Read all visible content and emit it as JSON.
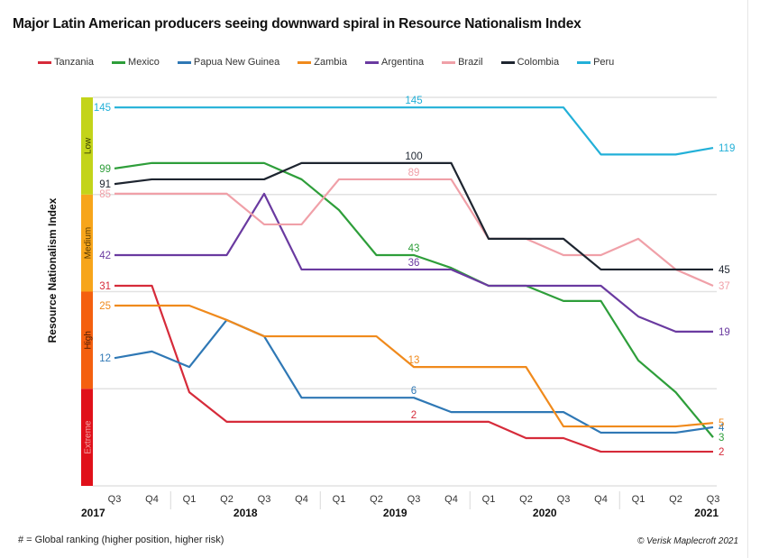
{
  "chart_data": {
    "type": "line",
    "title": "Major Latin American producers seeing downward spiral in Resource Nationalism Index",
    "ylabel": "Resource Nationalism Index",
    "xlabel": "",
    "x": [
      "Q3 2017",
      "Q4 2017",
      "Q1 2018",
      "Q2 2018",
      "Q3 2018",
      "Q4 2018",
      "Q1 2019",
      "Q2 2019",
      "Q3 2019",
      "Q4 2019",
      "Q1 2020",
      "Q2 2020",
      "Q3 2020",
      "Q4 2020",
      "Q1 2021",
      "Q2 2021",
      "Q3 2021"
    ],
    "quarter_ticks": [
      "Q3",
      "Q4",
      "Q1",
      "Q2",
      "Q3",
      "Q4",
      "Q1",
      "Q2",
      "Q3",
      "Q4",
      "Q1",
      "Q2",
      "Q3",
      "Q4",
      "Q1",
      "Q2",
      "Q3"
    ],
    "year_labels": [
      {
        "label": "2017",
        "at_index": 0,
        "align": "left"
      },
      {
        "label": "2018",
        "at_index": 3.5,
        "align": "center"
      },
      {
        "label": "2019",
        "at_index": 7.5,
        "align": "center"
      },
      {
        "label": "2020",
        "at_index": 11.5,
        "align": "center"
      },
      {
        "label": "2021",
        "at_index": 16,
        "align": "right"
      }
    ],
    "year_separators_after_index": [
      1,
      5,
      9,
      13
    ],
    "y_scale_note": "Vertical position is a risk-band position scale from 0 (bottom, Extreme) to 1 (top, Low); values below are that position",
    "ylim": [
      0,
      1
    ],
    "bands": [
      {
        "name": "Extreme",
        "from": 0,
        "to": 0.25,
        "color": "#e0101a",
        "text_color": "#f4a0a0"
      },
      {
        "name": "High",
        "from": 0.25,
        "to": 0.5,
        "color": "#f4600f",
        "text_color": "#4a1a00"
      },
      {
        "name": "Medium",
        "from": 0.5,
        "to": 0.75,
        "color": "#f7a51b",
        "text_color": "#5a3a00"
      },
      {
        "name": "Low",
        "from": 0.75,
        "to": 1,
        "color": "#c3d41a",
        "text_color": "#3a4000"
      }
    ],
    "grid": true,
    "legend_position": "top",
    "series": [
      {
        "name": "Tanzania",
        "color": "#d62b3a",
        "positions": [
          0.515,
          0.515,
          0.241,
          0.165,
          0.165,
          0.165,
          0.165,
          0.165,
          0.165,
          0.165,
          0.165,
          0.123,
          0.123,
          0.088,
          0.088,
          0.088,
          0.088
        ],
        "labels": [
          {
            "index": 0,
            "text": "31",
            "side": "start"
          },
          {
            "index": 8,
            "text": "2",
            "side": "above"
          },
          {
            "index": 16,
            "text": "2",
            "side": "end"
          }
        ]
      },
      {
        "name": "Mexico",
        "color": "#2e9e3a",
        "positions": [
          0.817,
          0.831,
          0.831,
          0.831,
          0.831,
          0.789,
          0.71,
          0.594,
          0.594,
          0.561,
          0.515,
          0.515,
          0.476,
          0.476,
          0.323,
          0.241,
          0.125
        ],
        "labels": [
          {
            "index": 0,
            "text": "99",
            "side": "start"
          },
          {
            "index": 8,
            "text": "43",
            "side": "above"
          },
          {
            "index": 16,
            "text": "3",
            "side": "end"
          }
        ]
      },
      {
        "name": "Papua New Guinea",
        "color": "#2f78b5",
        "positions": [
          0.329,
          0.346,
          0.306,
          0.427,
          0.385,
          0.227,
          0.227,
          0.227,
          0.227,
          0.19,
          0.19,
          0.19,
          0.19,
          0.137,
          0.137,
          0.137,
          0.151
        ],
        "labels": [
          {
            "index": 0,
            "text": "12",
            "side": "start"
          },
          {
            "index": 8,
            "text": "6",
            "side": "above"
          },
          {
            "index": 16,
            "text": "4",
            "side": "end"
          }
        ]
      },
      {
        "name": "Zambia",
        "color": "#f08a1c",
        "positions": [
          0.464,
          0.464,
          0.464,
          0.427,
          0.385,
          0.385,
          0.385,
          0.385,
          0.306,
          0.306,
          0.306,
          0.306,
          0.153,
          0.153,
          0.153,
          0.153,
          0.162
        ],
        "labels": [
          {
            "index": 0,
            "text": "25",
            "side": "start"
          },
          {
            "index": 8,
            "text": "13",
            "side": "above"
          },
          {
            "index": 16,
            "text": "5",
            "side": "end"
          }
        ]
      },
      {
        "name": "Argentina",
        "color": "#6a3aa0",
        "positions": [
          0.594,
          0.594,
          0.594,
          0.594,
          0.752,
          0.557,
          0.557,
          0.557,
          0.557,
          0.557,
          0.515,
          0.515,
          0.515,
          0.515,
          0.436,
          0.397,
          0.397
        ],
        "labels": [
          {
            "index": 0,
            "text": "42",
            "side": "start"
          },
          {
            "index": 8,
            "text": "36",
            "side": "above"
          },
          {
            "index": 16,
            "text": "19",
            "side": "end"
          }
        ]
      },
      {
        "name": "Brazil",
        "color": "#f0a0a8",
        "positions": [
          0.752,
          0.752,
          0.752,
          0.752,
          0.673,
          0.673,
          0.789,
          0.789,
          0.789,
          0.789,
          0.636,
          0.636,
          0.594,
          0.594,
          0.636,
          0.557,
          0.515
        ],
        "labels": [
          {
            "index": 0,
            "text": "85",
            "side": "start"
          },
          {
            "index": 8,
            "text": "89",
            "side": "above"
          },
          {
            "index": 16,
            "text": "37",
            "side": "end"
          }
        ]
      },
      {
        "name": "Colombia",
        "color": "#1e2530",
        "positions": [
          0.777,
          0.789,
          0.789,
          0.789,
          0.789,
          0.831,
          0.831,
          0.831,
          0.831,
          0.831,
          0.636,
          0.636,
          0.636,
          0.557,
          0.557,
          0.557,
          0.557
        ],
        "labels": [
          {
            "index": 0,
            "text": "91",
            "side": "start"
          },
          {
            "index": 8,
            "text": "100",
            "side": "above"
          },
          {
            "index": 16,
            "text": "45",
            "side": "end"
          }
        ]
      },
      {
        "name": "Peru",
        "color": "#22b0d8",
        "positions": [
          0.974,
          0.974,
          0.974,
          0.974,
          0.974,
          0.974,
          0.974,
          0.974,
          0.974,
          0.974,
          0.974,
          0.974,
          0.974,
          0.853,
          0.853,
          0.853,
          0.87
        ],
        "labels": [
          {
            "index": 0,
            "text": "145",
            "side": "start"
          },
          {
            "index": 8,
            "text": "145",
            "side": "above"
          },
          {
            "index": 16,
            "text": "119",
            "side": "end"
          }
        ]
      }
    ]
  },
  "footer": {
    "note": "# = Global ranking (higher position, higher risk)",
    "copyright": "© Verisk Maplecroft 2021"
  }
}
